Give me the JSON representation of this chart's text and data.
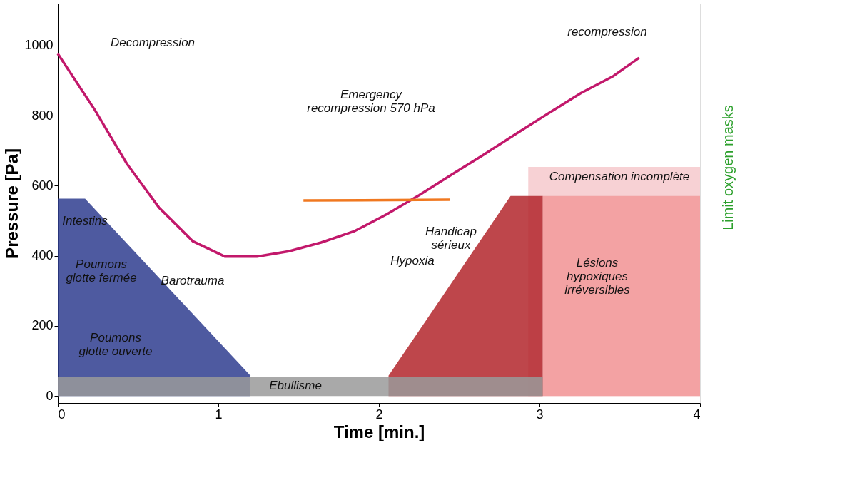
{
  "chart_data": {
    "type": "line",
    "xlabel": "Time [min.]",
    "ylabel": "Pressure [Pa]",
    "xlim": [
      0,
      4
    ],
    "ylim": [
      -20,
      1120
    ],
    "xticks": [
      0,
      1,
      2,
      3,
      4
    ],
    "yticks": [
      0,
      200,
      400,
      600,
      800,
      1000
    ],
    "grid": false,
    "legend": false,
    "series": [
      {
        "type": "area",
        "color": "#f6c9cc",
        "x": [
          2.93,
          4
        ],
        "values": [
          654,
          654
        ]
      },
      {
        "type": "area",
        "color": "#f29a9a",
        "x": [
          3.02,
          4
        ],
        "values": [
          571,
          571
        ]
      },
      {
        "type": "area",
        "color": "#b3262b",
        "x": [
          2.06,
          2.82,
          3.02
        ],
        "values": [
          58,
          571,
          571
        ]
      },
      {
        "type": "area",
        "color": "#2f3d8f",
        "x": [
          0,
          0.17,
          1.2
        ],
        "values": [
          563,
          563,
          58
        ]
      },
      {
        "type": "area",
        "color": "#9a9a9a",
        "x": [
          0,
          3.02
        ],
        "values": [
          54,
          54
        ]
      },
      {
        "color": "#c2186b",
        "x": [
          0,
          0.23,
          0.43,
          0.63,
          0.84,
          1.04,
          1.24,
          1.44,
          1.64,
          1.85,
          2.05,
          2.25,
          2.45,
          2.65,
          2.86,
          3.06,
          3.26,
          3.46,
          3.62
        ],
        "values": [
          977,
          817,
          663,
          538,
          442,
          398,
          398,
          413,
          438,
          471,
          519,
          573,
          631,
          688,
          750,
          808,
          865,
          913,
          965
        ]
      },
      {
        "color": "#f07820",
        "x": [
          1.53,
          2.44
        ],
        "values": [
          558,
          560
        ]
      }
    ],
    "annotations": [
      "Decompression",
      "recompression",
      "Emergency\nrecompression 570 hPa",
      "Intestins",
      "Poumons\nglotte fermée",
      "Poumons\nglotte ouverte",
      "Barotrauma",
      "Ebullisme",
      "Hypoxia",
      "Handicap\nsérieux",
      "Compensation incomplète",
      "Lésions\nhypoxiques\nirréversibles",
      "Limit oxygen masks"
    ]
  }
}
